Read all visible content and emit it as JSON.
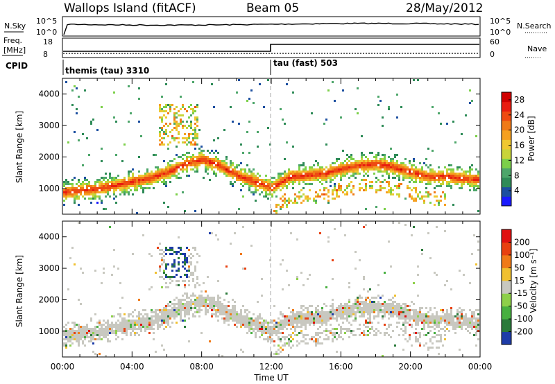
{
  "header": {
    "station": "Wallops Island (fitACF)",
    "beam": "Beam 05",
    "date": "28/May/2012"
  },
  "panels": {
    "nsky_label": "N.Sky",
    "nsky_ticks": [
      "10^5",
      "10^0"
    ],
    "nsearch_label": "N.Search",
    "nsearch_ticks": [
      "10^5",
      "10^0"
    ],
    "freq_label_line1": "Freq.",
    "freq_label_line2": "[MHz]",
    "freq_ticks": [
      "18",
      "8"
    ],
    "nave_label": "Nave",
    "nave_ticks": [
      "60",
      "0"
    ],
    "cpid_label": "CPID",
    "cpid_modes": [
      "themis (tau) 3310",
      "tau (fast) 503"
    ]
  },
  "chart_data": [
    {
      "type": "heatmap",
      "name": "power",
      "ylabel": "Slant Range [km]",
      "xlabel": "",
      "xlim": [
        "00:00",
        "00:00"
      ],
      "ylim": [
        180,
        4500
      ],
      "ytick_labels": [
        "1000",
        "2000",
        "3000",
        "4000"
      ],
      "colorbar_label": "Power [dB]",
      "colorbar_ticks": [
        "4",
        "8",
        "12",
        "16",
        "20",
        "24",
        "28"
      ],
      "colorbar_range": [
        0,
        30
      ],
      "colors": [
        "#1a1aff",
        "#1c4fa0",
        "#2e8b57",
        "#4da66a",
        "#7cd04a",
        "#c8d43a",
        "#f0c830",
        "#f5a020",
        "#f07a18",
        "#ee4a12",
        "#e81c10",
        "#d00000"
      ],
      "bands": [
        {
          "t": [
            0,
            1,
            2,
            3,
            4,
            5,
            6,
            7,
            8,
            9,
            10,
            11,
            12,
            13,
            14,
            15,
            16,
            17,
            18,
            19,
            20,
            21,
            22,
            23,
            24
          ],
          "range_km": [
            900,
            960,
            1020,
            1120,
            1250,
            1350,
            1550,
            1800,
            1950,
            1750,
            1450,
            1250,
            1050,
            1400,
            1450,
            1500,
            1650,
            1750,
            1800,
            1700,
            1550,
            1400,
            1400,
            1350,
            1300
          ]
        }
      ]
    },
    {
      "type": "heatmap",
      "name": "velocity",
      "ylabel": "Slant Range [km]",
      "xlabel": "Time UT",
      "xlim": [
        "00:00",
        "00:00"
      ],
      "ylim": [
        180,
        4500
      ],
      "ytick_labels": [
        "1000",
        "2000",
        "3000",
        "4000"
      ],
      "xtick_labels": [
        "00:00",
        "04:00",
        "08:00",
        "12:00",
        "16:00",
        "20:00",
        "00:00"
      ],
      "colorbar_label": "Velocity [m s⁻¹]",
      "colorbar_ticks": [
        "200",
        "100",
        "50",
        "15",
        "-15",
        "-50",
        "-100",
        "-200"
      ],
      "colorbar_range": [
        -250,
        250
      ],
      "colors": [
        "#1e3ca8",
        "#2a7a3a",
        "#48b040",
        "#8ed04a",
        "#c8c8c0",
        "#f0c030",
        "#f07a18",
        "#e84010",
        "#e01010"
      ]
    }
  ]
}
